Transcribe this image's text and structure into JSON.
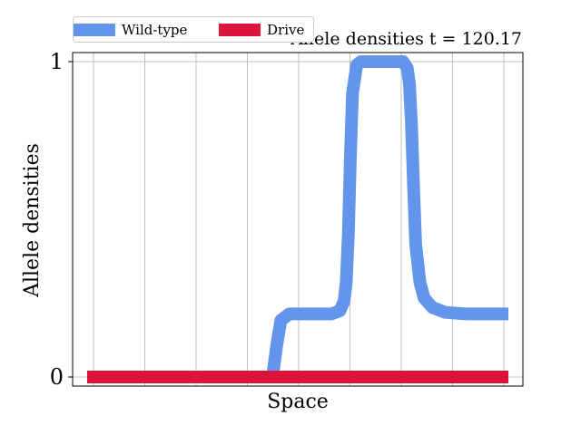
{
  "chart_data": {
    "type": "line",
    "title": "Allele densities t = 120.17",
    "xlabel": "Space",
    "ylabel": "Allele densities",
    "ylim": [
      0,
      1
    ],
    "yticks": [
      "0",
      "1"
    ],
    "xlim": [
      0,
      1
    ],
    "grid": true,
    "legend_placement": "top-left",
    "series": [
      {
        "name": "Wild-type",
        "color": "#6495ed",
        "x": [
          0.0,
          0.42,
          0.44,
          0.45,
          0.46,
          0.48,
          0.55,
          0.58,
          0.6,
          0.61,
          0.615,
          0.62,
          0.625,
          0.63,
          0.64,
          0.65,
          0.68,
          0.73,
          0.75,
          0.76,
          0.765,
          0.77,
          0.775,
          0.78,
          0.79,
          0.8,
          0.82,
          0.85,
          0.9,
          1.0
        ],
        "values": [
          0.0,
          0.0,
          0.0,
          0.1,
          0.18,
          0.2,
          0.2,
          0.2,
          0.21,
          0.24,
          0.3,
          0.45,
          0.7,
          0.9,
          0.99,
          1.0,
          1.0,
          1.0,
          1.0,
          0.98,
          0.93,
          0.8,
          0.6,
          0.42,
          0.3,
          0.25,
          0.22,
          0.205,
          0.2,
          0.2
        ]
      },
      {
        "name": "Drive",
        "color": "#dc143c",
        "x": [
          0.0,
          1.0
        ],
        "values": [
          0.0,
          0.0
        ]
      }
    ]
  }
}
